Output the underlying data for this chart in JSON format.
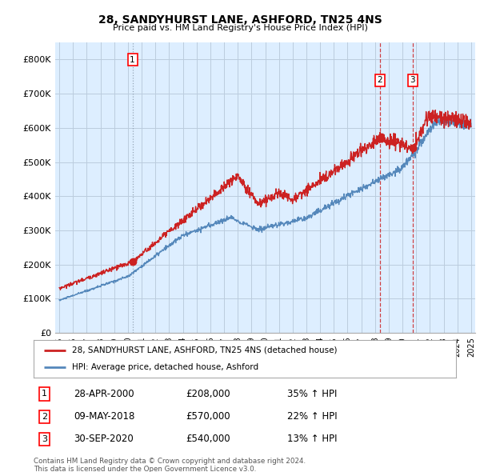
{
  "title": "28, SANDYHURST LANE, ASHFORD, TN25 4NS",
  "subtitle": "Price paid vs. HM Land Registry's House Price Index (HPI)",
  "ylim": [
    0,
    850000
  ],
  "yticks": [
    0,
    100000,
    200000,
    300000,
    400000,
    500000,
    600000,
    700000,
    800000
  ],
  "ytick_labels": [
    "£0",
    "£100K",
    "£200K",
    "£300K",
    "£400K",
    "£500K",
    "£600K",
    "£700K",
    "£800K"
  ],
  "red_color": "#cc2222",
  "blue_color": "#5588bb",
  "chart_bg": "#ddeeff",
  "background_color": "#ffffff",
  "grid_color": "#bbccdd",
  "transactions": [
    {
      "label": "1",
      "date": "28-APR-2000",
      "price": 208000,
      "pct": "35%",
      "dir": "↑",
      "x": 2000.33,
      "vline_style": "dotted",
      "vline_color": "#8899aa"
    },
    {
      "label": "2",
      "date": "09-MAY-2018",
      "price": 570000,
      "pct": "22%",
      "dir": "↑",
      "x": 2018.36,
      "vline_style": "dashed",
      "vline_color": "#cc2222"
    },
    {
      "label": "3",
      "date": "30-SEP-2020",
      "price": 540000,
      "pct": "13%",
      "dir": "↑",
      "x": 2020.75,
      "vline_style": "dashed",
      "vline_color": "#cc2222"
    }
  ],
  "legend_line1": "28, SANDYHURST LANE, ASHFORD, TN25 4NS (detached house)",
  "legend_line2": "HPI: Average price, detached house, Ashford",
  "footer1": "Contains HM Land Registry data © Crown copyright and database right 2024.",
  "footer2": "This data is licensed under the Open Government Licence v3.0."
}
